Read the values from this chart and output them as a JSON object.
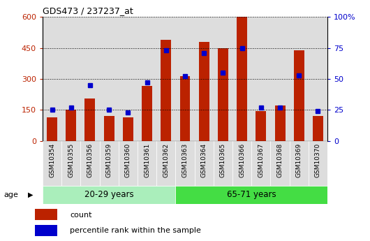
{
  "title": "GDS473 / 237237_at",
  "samples": [
    "GSM10354",
    "GSM10355",
    "GSM10356",
    "GSM10359",
    "GSM10360",
    "GSM10361",
    "GSM10362",
    "GSM10363",
    "GSM10364",
    "GSM10365",
    "GSM10366",
    "GSM10367",
    "GSM10368",
    "GSM10369",
    "GSM10370"
  ],
  "count_values": [
    115,
    150,
    205,
    120,
    115,
    265,
    490,
    315,
    480,
    450,
    600,
    145,
    170,
    440,
    120
  ],
  "percentile_values": [
    25,
    27,
    45,
    25,
    23,
    47,
    73,
    52,
    71,
    55,
    75,
    27,
    27,
    53,
    24
  ],
  "group1_label": "20-29 years",
  "group2_label": "65-71 years",
  "group1_count": 7,
  "group2_count": 8,
  "count_color": "#BB2200",
  "percentile_color": "#0000CC",
  "legend_count": "count",
  "legend_percentile": "percentile rank within the sample",
  "age_label": "age",
  "ylim_left": [
    0,
    600
  ],
  "ylim_right": [
    0,
    100
  ],
  "yticks_left": [
    0,
    150,
    300,
    450,
    600
  ],
  "ytick_labels_left": [
    "0",
    "150",
    "300",
    "450",
    "600"
  ],
  "yticks_right": [
    0,
    25,
    50,
    75,
    100
  ],
  "ytick_labels_right": [
    "0",
    "25",
    "50",
    "75",
    "100%"
  ],
  "group1_bg": "#AAEEBB",
  "group2_bg": "#44DD44",
  "plot_bg": "#FFFFFF",
  "col_bg": "#DDDDDD"
}
